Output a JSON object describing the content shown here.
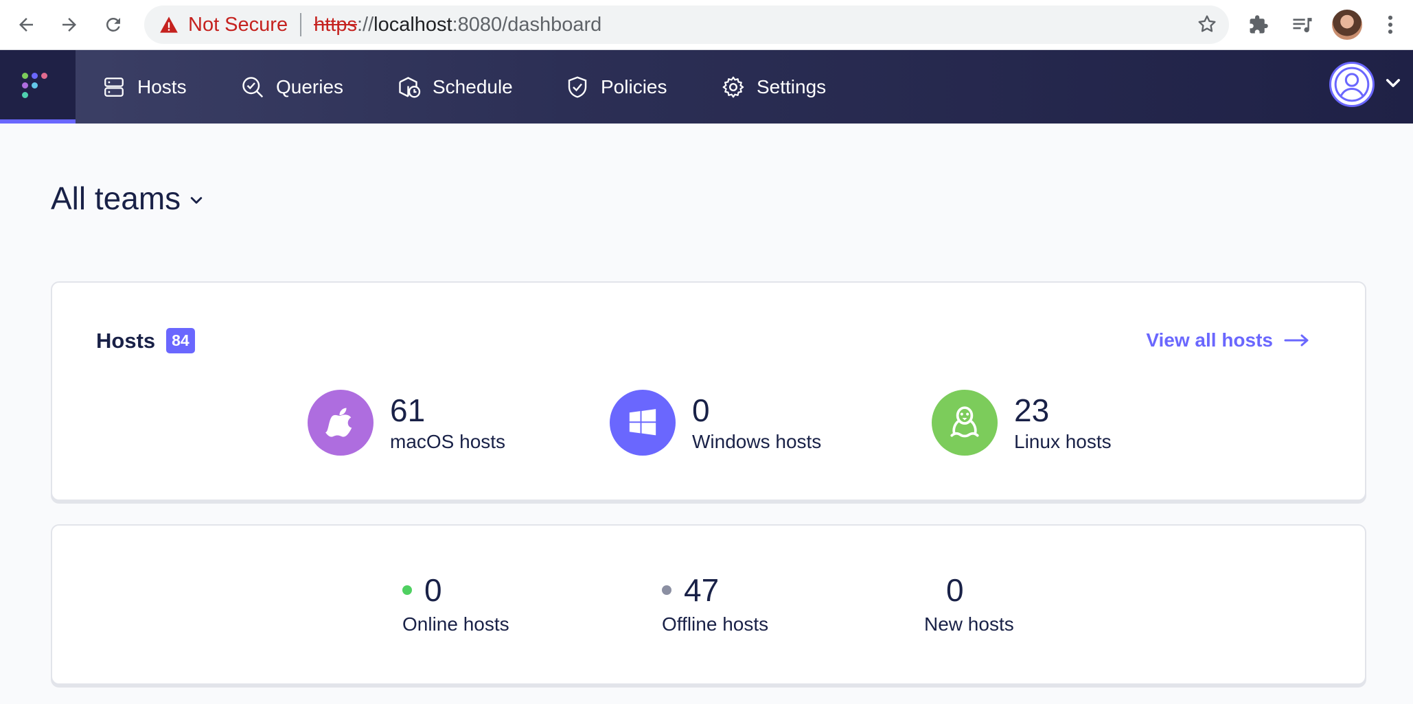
{
  "browser": {
    "not_secure_label": "Not Secure",
    "url_scheme": "https",
    "url_separator": "://",
    "url_host": "localhost",
    "url_rest": ":8080/dashboard"
  },
  "nav": {
    "items": [
      {
        "label": "Hosts",
        "icon": "server-icon"
      },
      {
        "label": "Queries",
        "icon": "search-check-icon"
      },
      {
        "label": "Schedule",
        "icon": "schedule-icon"
      },
      {
        "label": "Policies",
        "icon": "shield-check-icon"
      },
      {
        "label": "Settings",
        "icon": "gear-icon"
      }
    ]
  },
  "teams": {
    "label": "All teams"
  },
  "hosts_card": {
    "title": "Hosts",
    "count": "84",
    "view_all": "View all hosts",
    "platforms": [
      {
        "count": "61",
        "label": "macOS hosts",
        "icon": "apple-icon",
        "color": "#ae6ddf"
      },
      {
        "count": "0",
        "label": "Windows hosts",
        "icon": "windows-icon",
        "color": "#6a67fe"
      },
      {
        "count": "23",
        "label": "Linux hosts",
        "icon": "linux-icon",
        "color": "#7ccc5b"
      }
    ]
  },
  "status_card": {
    "stats": [
      {
        "count": "0",
        "label": "Online hosts",
        "dot_color": "#4fd061"
      },
      {
        "count": "47",
        "label": "Offline hosts",
        "dot_color": "#8b8fa2"
      },
      {
        "count": "0",
        "label": "New hosts"
      }
    ]
  },
  "colors": {
    "accent": "#6a67fe",
    "nav_bg": "#1f2146",
    "text": "#192147"
  }
}
